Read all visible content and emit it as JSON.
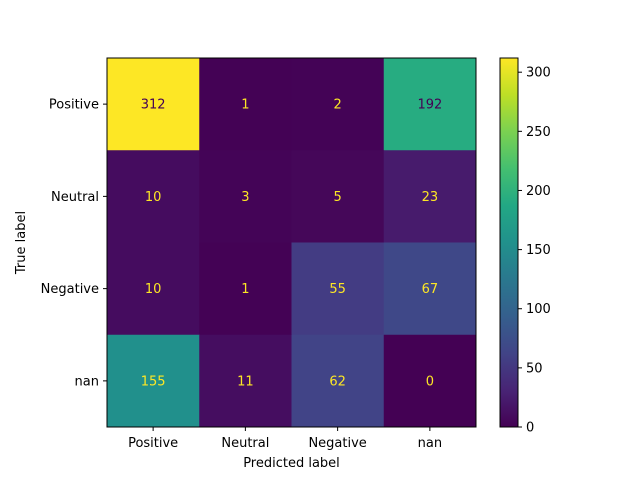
{
  "chart_data": {
    "type": "heatmap",
    "title": "",
    "xlabel": "Predicted label",
    "ylabel": "True label",
    "x_categories": [
      "Positive",
      "Neutral",
      "Negative",
      "nan"
    ],
    "y_categories": [
      "Positive",
      "Neutral",
      "Negative",
      "nan"
    ],
    "values": [
      [
        312,
        1,
        2,
        192
      ],
      [
        10,
        3,
        5,
        23
      ],
      [
        10,
        1,
        55,
        67
      ],
      [
        155,
        11,
        62,
        0
      ]
    ],
    "colormap": "viridis",
    "colorbar": {
      "min": 0,
      "max": 312,
      "ticks": [
        0,
        50,
        100,
        150,
        200,
        250,
        300
      ]
    },
    "colors": {
      "label_on_dark": "#fde725",
      "label_on_light": "#440154"
    }
  }
}
